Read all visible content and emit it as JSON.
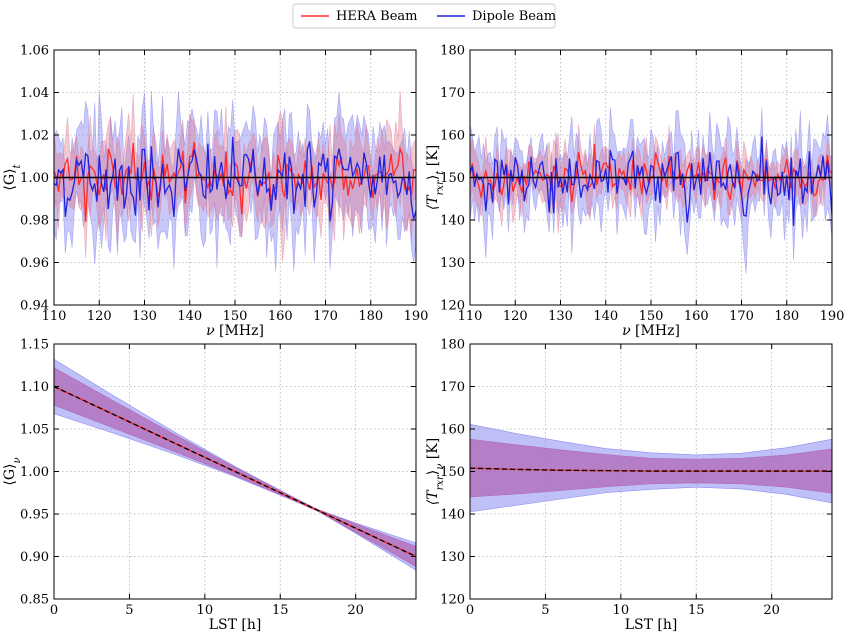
{
  "legend": [
    {
      "label": "HERA Beam",
      "color": "#ff2a2a"
    },
    {
      "label": "Dipole Beam",
      "color": "#2222dd"
    }
  ],
  "chart_data": [
    {
      "type": "line",
      "id": "gain-vs-freq",
      "xlabel_sym": "ν",
      "xlabel_unit": " [MHz]",
      "ylabel_main": "⟨G⟩",
      "ylabel_sub": "t",
      "ylabel_rest": "",
      "xlim": [
        110,
        190
      ],
      "ylim": [
        0.94,
        1.06
      ],
      "xticks": [
        "110",
        "120",
        "130",
        "140",
        "150",
        "160",
        "170",
        "180",
        "190"
      ],
      "yticks": [
        "0.94",
        "0.96",
        "0.98",
        "1.00",
        "1.02",
        "1.04",
        "1.06"
      ],
      "x": {
        "start": 110,
        "end": 190,
        "count": 161
      },
      "reference": 1.0,
      "series": [
        {
          "name": "HERA Beam",
          "center": 1.0,
          "fluct": 0.006,
          "band": 0.016
        },
        {
          "name": "Dipole Beam",
          "center": 1.0,
          "fluct": 0.009,
          "band": 0.022
        }
      ]
    },
    {
      "type": "line",
      "id": "trx-vs-freq",
      "xlabel_sym": "ν",
      "xlabel_unit": " [MHz]",
      "ylabel_main": "⟨T",
      "ylabel_sub": "rxr",
      "ylabel_rest": "⟩",
      "ylabel_sub2": "t",
      "ylabel_unit": " [K]",
      "xlim": [
        110,
        190
      ],
      "ylim": [
        120,
        180
      ],
      "xticks": [
        "110",
        "120",
        "130",
        "140",
        "150",
        "160",
        "170",
        "180",
        "190"
      ],
      "yticks": [
        "120",
        "130",
        "140",
        "150",
        "160",
        "170",
        "180"
      ],
      "x": {
        "start": 110,
        "end": 190,
        "count": 161
      },
      "reference": 150,
      "series": [
        {
          "name": "HERA Beam",
          "center": 150,
          "fluct": 2.5,
          "band": 5
        },
        {
          "name": "Dipole Beam",
          "center": 150,
          "fluct": 4,
          "band": 8
        }
      ]
    },
    {
      "type": "area",
      "id": "gain-vs-lst",
      "xlabel": "LST [h]",
      "ylabel_main": "⟨G⟩",
      "ylabel_sub": "ν",
      "ylabel_rest": "",
      "xlim": [
        0,
        24
      ],
      "ylim": [
        0.85,
        1.15
      ],
      "xticks": [
        "0",
        "5",
        "10",
        "15",
        "20"
      ],
      "yticks": [
        "0.85",
        "0.90",
        "0.95",
        "1.00",
        "1.05",
        "1.10",
        "1.15"
      ],
      "x": [
        0,
        4,
        8,
        12,
        14,
        16,
        17.5,
        20,
        24
      ],
      "mean": [
        1.1,
        1.0667,
        1.0333,
        1.0,
        0.9833,
        0.9667,
        0.9542,
        0.9333,
        0.9
      ],
      "series": [
        {
          "name": "Dipole Beam",
          "halfwidth": [
            0.032,
            0.022,
            0.013,
            0.006,
            0.004,
            0.002,
            0.001,
            0.006,
            0.016
          ]
        },
        {
          "name": "HERA Beam",
          "halfwidth": [
            0.022,
            0.016,
            0.01,
            0.005,
            0.003,
            0.0015,
            0.001,
            0.005,
            0.012
          ]
        }
      ]
    },
    {
      "type": "area",
      "id": "trx-vs-lst",
      "xlabel": "LST [h]",
      "ylabel_main": "⟨T",
      "ylabel_sub": "rxr",
      "ylabel_rest": "⟩",
      "ylabel_sub2": "ν",
      "ylabel_unit": " [K]",
      "xlim": [
        0,
        24
      ],
      "ylim": [
        120,
        180
      ],
      "xticks": [
        "0",
        "5",
        "10",
        "15",
        "20"
      ],
      "yticks": [
        "120",
        "130",
        "140",
        "150",
        "160",
        "170",
        "180"
      ],
      "x": [
        0,
        3,
        6,
        9,
        12,
        15,
        18,
        21,
        24
      ],
      "mean": [
        150.8,
        150.5,
        150.3,
        150.2,
        150.1,
        150.1,
        150.1,
        150.1,
        150.1
      ],
      "series": [
        {
          "name": "Dipole Beam",
          "halfwidth": [
            10.3,
            8.5,
            6.8,
            5.2,
            4.3,
            3.8,
            4.2,
            5.5,
            7.5
          ]
        },
        {
          "name": "HERA Beam",
          "halfwidth": [
            6.8,
            5.8,
            4.8,
            3.8,
            3.0,
            2.8,
            3.0,
            3.8,
            5.2
          ]
        }
      ]
    }
  ]
}
